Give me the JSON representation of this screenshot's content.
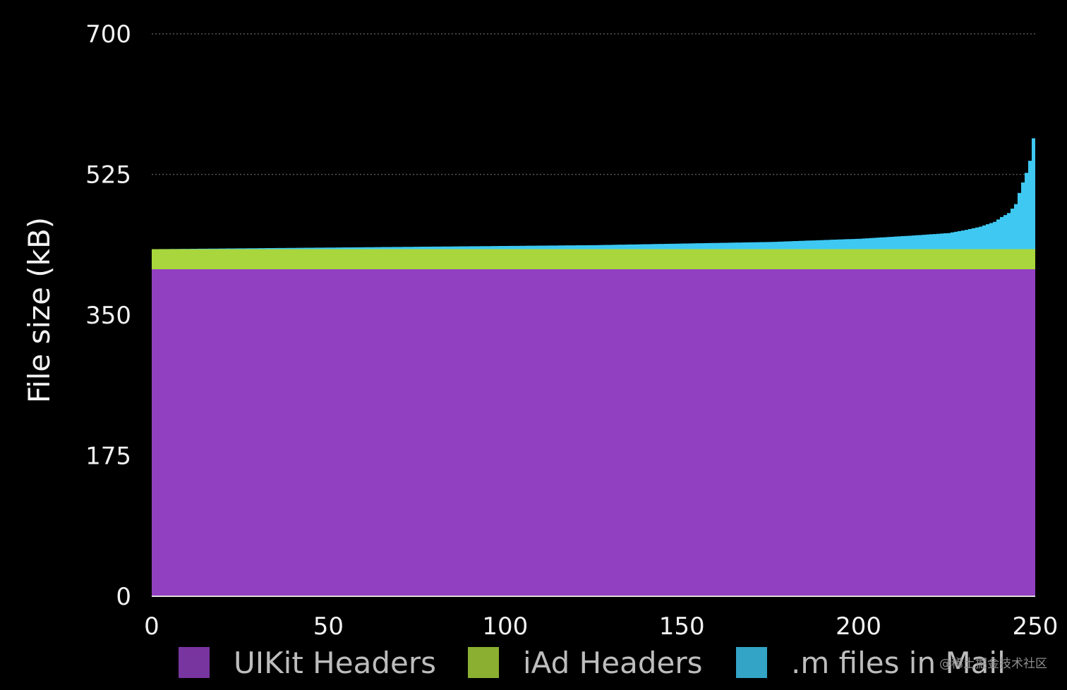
{
  "chart_data": {
    "type": "area",
    "stacked": true,
    "title": "",
    "xlabel": "",
    "ylabel": "File size (kB)",
    "xlim": [
      0,
      250
    ],
    "ylim": [
      0,
      700
    ],
    "x_ticks": [
      "0",
      "50",
      "100",
      "150",
      "200",
      "250"
    ],
    "y_ticks": [
      "0",
      "175",
      "350",
      "525",
      "700"
    ],
    "grid": "horizontal dotted",
    "legend_position": "bottom",
    "series": [
      {
        "name": "UIKit Headers",
        "color": "#9240c2",
        "x": [
          0,
          250
        ],
        "values": [
          407,
          407
        ]
      },
      {
        "name": "iAd Headers",
        "color": "#a9d63c",
        "x": [
          0,
          250
        ],
        "values": [
          25,
          25
        ]
      },
      {
        "name": ".m files in Mail",
        "color": "#3ec8f2",
        "x": [
          0,
          25,
          50,
          75,
          100,
          125,
          150,
          175,
          200,
          215,
          225,
          230,
          234,
          238,
          240,
          242,
          244,
          245,
          246,
          247,
          248,
          249,
          250
        ],
        "values": [
          0,
          1,
          2,
          3,
          4,
          5,
          7,
          9,
          13,
          17,
          20,
          24,
          28,
          34,
          40,
          45,
          56,
          70,
          83,
          95,
          110,
          138,
          155
        ]
      }
    ]
  },
  "watermark": "@稀土掘金技术社区",
  "colors": {
    "background": "#000000",
    "text": "#f2f2f2",
    "legend_text": "#bdbdbd",
    "grid": "#555555"
  }
}
